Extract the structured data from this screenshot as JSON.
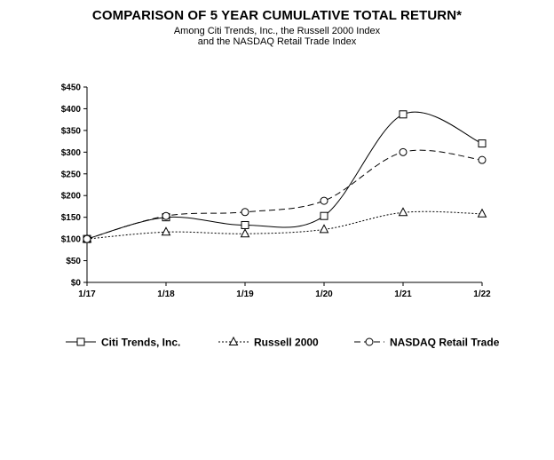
{
  "chart_data": {
    "type": "line",
    "title": "COMPARISON OF 5 YEAR CUMULATIVE TOTAL RETURN*",
    "subtitle": [
      "Among Citi Trends, Inc., the Russell 2000 Index",
      "and the NASDAQ  Retail Trade Index"
    ],
    "categories": [
      "1/17",
      "1/18",
      "1/19",
      "1/20",
      "1/21",
      "1/22"
    ],
    "y_ticks": [
      "$0",
      "$50",
      "$100",
      "$150",
      "$200",
      "$250",
      "$300",
      "$350",
      "$400",
      "$450"
    ],
    "ylim": [
      0,
      450
    ],
    "grid": false,
    "legend_position": "bottom",
    "series": [
      {
        "name": "Citi Trends, Inc.",
        "marker": "square",
        "dash": "solid",
        "values": [
          100,
          150,
          132,
          153,
          387,
          320
        ]
      },
      {
        "name": "Russell 2000",
        "marker": "triangle",
        "dash": "dotted",
        "values": [
          100,
          116,
          112,
          122,
          161,
          158
        ]
      },
      {
        "name": "NASDAQ Retail Trade",
        "marker": "circle",
        "dash": "dashed",
        "values": [
          100,
          153,
          162,
          188,
          300,
          282
        ]
      }
    ]
  }
}
